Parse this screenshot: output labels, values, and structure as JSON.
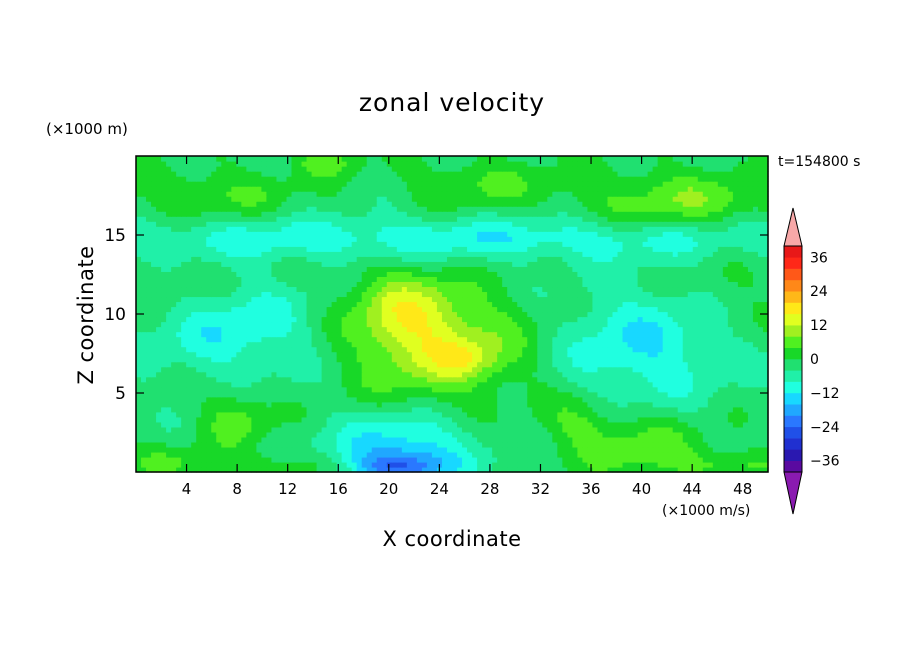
{
  "chart_data": {
    "type": "heatmap",
    "title": "zonal velocity",
    "xlabel": "X coordinate",
    "ylabel": "Z coordinate",
    "z_unit": "(×1000 m)",
    "x_unit": "(×1000 m/s)",
    "time_label": "t=154800 s",
    "xlim": [
      0,
      50
    ],
    "ylim": [
      0,
      20
    ],
    "x_ticks": [
      4,
      8,
      12,
      16,
      20,
      24,
      28,
      32,
      36,
      40,
      44,
      48
    ],
    "y_ticks": [
      5,
      10,
      15
    ],
    "colorbar": {
      "levels": [
        -40,
        -36,
        -32,
        -28,
        -24,
        -20,
        -16,
        -12,
        -8,
        -4,
        0,
        4,
        8,
        12,
        16,
        20,
        24,
        28,
        32,
        36,
        40
      ],
      "colors": [
        "#5a0aa0",
        "#2a18b0",
        "#2030d0",
        "#2050e8",
        "#2a78ff",
        "#20a8ff",
        "#18d8ff",
        "#20ffe0",
        "#20f0a8",
        "#20e070",
        "#18d828",
        "#50f020",
        "#a0f020",
        "#e0ff20",
        "#ffe818",
        "#ffb818",
        "#ff8818",
        "#ff5818",
        "#ff2818",
        "#e81818"
      ],
      "under_color": "#8a1ab0",
      "over_color": "#f8a8a8",
      "tick_labels": [
        36,
        24,
        12,
        0,
        -12,
        -24,
        -36
      ]
    },
    "field_description_features": [
      {
        "x": 24,
        "z": 8,
        "value": 14,
        "sigma_x": 5,
        "sigma_z": 2.4
      },
      {
        "x": 21,
        "z": 10.5,
        "value": 10,
        "sigma_x": 3,
        "sigma_z": 1.8
      },
      {
        "x": 26,
        "z": 7.2,
        "value": 6,
        "sigma_x": 1.8,
        "sigma_z": 0.8
      },
      {
        "x": 43,
        "z": 17.2,
        "value": 9,
        "sigma_x": 6,
        "sigma_z": 1.4
      },
      {
        "x": 27,
        "z": 18.3,
        "value": 6,
        "sigma_x": 4,
        "sigma_z": 1.2
      },
      {
        "x": 6,
        "z": 17.6,
        "value": 6,
        "sigma_x": 5,
        "sigma_z": 1.2
      },
      {
        "x": 15,
        "z": 19.6,
        "value": 7,
        "sigma_x": 2,
        "sigma_z": 0.6
      },
      {
        "x": 25,
        "z": 14.8,
        "value": -9,
        "sigma_x": 25,
        "sigma_z": 1.0
      },
      {
        "x": 8,
        "z": 9,
        "value": -9,
        "sigma_x": 5,
        "sigma_z": 2.2
      },
      {
        "x": 40,
        "z": 8,
        "value": -10,
        "sigma_x": 5,
        "sigma_z": 2.6
      },
      {
        "x": 21,
        "z": 1.5,
        "value": -13,
        "sigma_x": 4,
        "sigma_z": 1.5
      },
      {
        "x": 21,
        "z": 0.3,
        "value": -14,
        "sigma_x": 2.5,
        "sigma_z": 0.7
      },
      {
        "x": 8,
        "z": 3.5,
        "value": 8,
        "sigma_x": 2,
        "sigma_z": 1.3
      },
      {
        "x": 40,
        "z": 1.5,
        "value": 8,
        "sigma_x": 4,
        "sigma_z": 1.5
      },
      {
        "x": 35,
        "z": 3.3,
        "value": 6,
        "sigma_x": 2,
        "sigma_z": 1.2
      },
      {
        "x": 3,
        "z": 0.6,
        "value": 6,
        "sigma_x": 3,
        "sigma_z": 0.8
      },
      {
        "x": 12,
        "z": 0.4,
        "value": 6,
        "sigma_x": 2.5,
        "sigma_z": 0.6
      },
      {
        "x": 47,
        "z": 0.5,
        "value": 6,
        "sigma_x": 3,
        "sigma_z": 0.6
      },
      {
        "x": 47,
        "z": 11,
        "value": 3,
        "sigma_x": 3,
        "sigma_z": 2
      },
      {
        "x": 3,
        "z": 12,
        "value": 3,
        "sigma_x": 3,
        "sigma_z": 1.5
      }
    ],
    "base_value": -2
  }
}
